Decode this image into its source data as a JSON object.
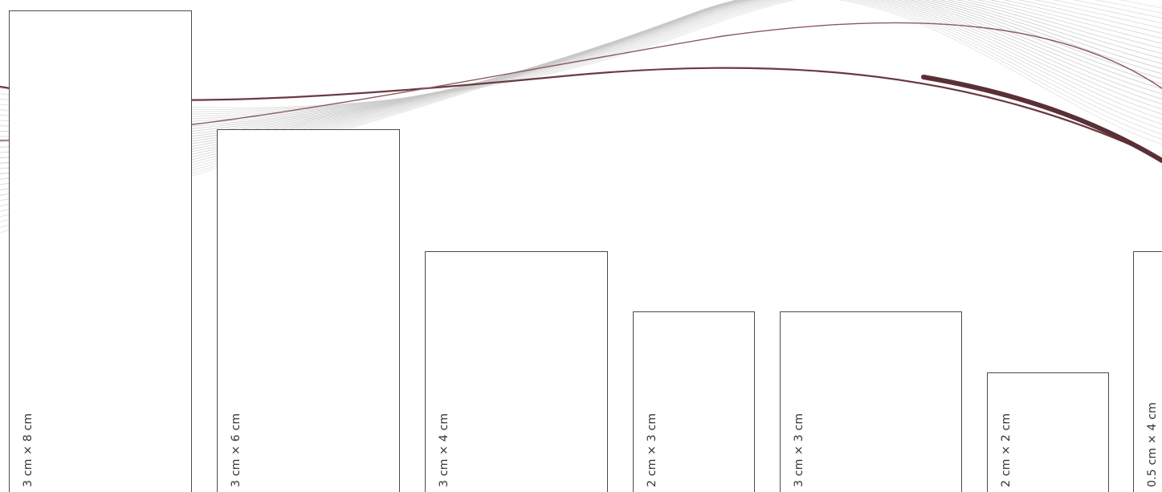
{
  "panels": [
    {
      "label": "3 cm × 8 cm"
    },
    {
      "label": "3 cm × 6 cm"
    },
    {
      "label": "3 cm × 4 cm"
    },
    {
      "label": "2 cm × 3 cm"
    },
    {
      "label": "3 cm × 3 cm"
    },
    {
      "label": "2 cm × 2 cm"
    },
    {
      "label": "0.5 cm × 4 cm"
    }
  ],
  "colors": {
    "accent_wave": "#6b3a40",
    "grey_wave": "#c8c8c8",
    "panel_border": "#4a4a4a",
    "label_text": "#333333",
    "background": "#ffffff"
  }
}
